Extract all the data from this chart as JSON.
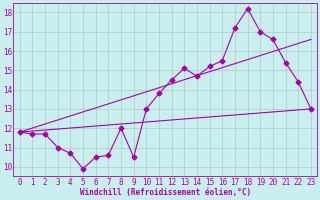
{
  "title": "",
  "xlabel": "Windchill (Refroidissement éolien,°C)",
  "ylabel": "",
  "xlim": [
    -0.5,
    23.5
  ],
  "ylim": [
    9.5,
    18.5
  ],
  "xticks": [
    0,
    1,
    2,
    3,
    4,
    5,
    6,
    7,
    8,
    9,
    10,
    11,
    12,
    13,
    14,
    15,
    16,
    17,
    18,
    19,
    20,
    21,
    22,
    23
  ],
  "yticks": [
    10,
    11,
    12,
    13,
    14,
    15,
    16,
    17,
    18
  ],
  "bg_color": "#c8eeee",
  "line_color": "#aa00aa",
  "grid_color": "#b0c8c8",
  "line1_x": [
    0,
    1,
    2,
    3,
    4,
    5,
    6,
    7,
    8,
    9,
    10,
    11,
    12,
    13,
    14,
    15,
    16,
    17,
    18,
    19,
    20,
    21,
    22,
    23
  ],
  "line1_y": [
    11.8,
    11.7,
    11.7,
    11.0,
    10.7,
    9.9,
    10.5,
    10.6,
    12.0,
    10.5,
    13.0,
    13.8,
    14.5,
    15.1,
    14.7,
    15.2,
    15.5,
    17.2,
    18.2,
    17.0,
    16.6,
    15.4,
    14.4,
    13.0
  ],
  "line2_x": [
    0,
    23
  ],
  "line2_y": [
    11.8,
    13.0
  ],
  "line3_x": [
    0,
    23
  ],
  "line3_y": [
    11.8,
    16.6
  ],
  "marker": "D",
  "markersize": 2.5,
  "linewidth": 0.8,
  "xlabel_fontsize": 5.5,
  "tick_fontsize": 5.5
}
